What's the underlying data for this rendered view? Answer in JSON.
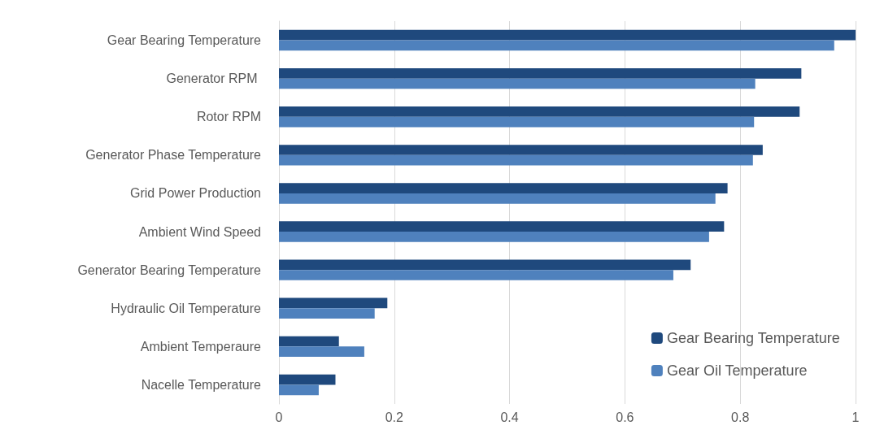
{
  "chart_data": {
    "type": "bar",
    "orientation": "horizontal",
    "categories": [
      "Gear Bearing Temperature",
      "Generator RPM ",
      "Rotor RPM",
      "Generator Phase Temperature",
      "Grid Power Production",
      "Ambient Wind Speed",
      "Generator Bearing Temperature",
      "Hydraulic Oil Temperature",
      "Ambient Temperaure",
      "Nacelle Temperature"
    ],
    "series": [
      {
        "name": "Gear Bearing Temperature",
        "color": "#1f497d",
        "values": [
          1.0,
          0.906,
          0.903,
          0.839,
          0.778,
          0.772,
          0.714,
          0.188,
          0.104,
          0.098
        ]
      },
      {
        "name": "Gear Oil Temperature",
        "color": "#4f81bd",
        "values": [
          0.963,
          0.826,
          0.824,
          0.822,
          0.757,
          0.746,
          0.684,
          0.166,
          0.148,
          0.069
        ]
      }
    ],
    "xlim": [
      0,
      1
    ],
    "xticks": [
      0,
      0.2,
      0.4,
      0.6,
      0.8,
      1
    ],
    "grid": "x",
    "legend": "bottom right"
  }
}
